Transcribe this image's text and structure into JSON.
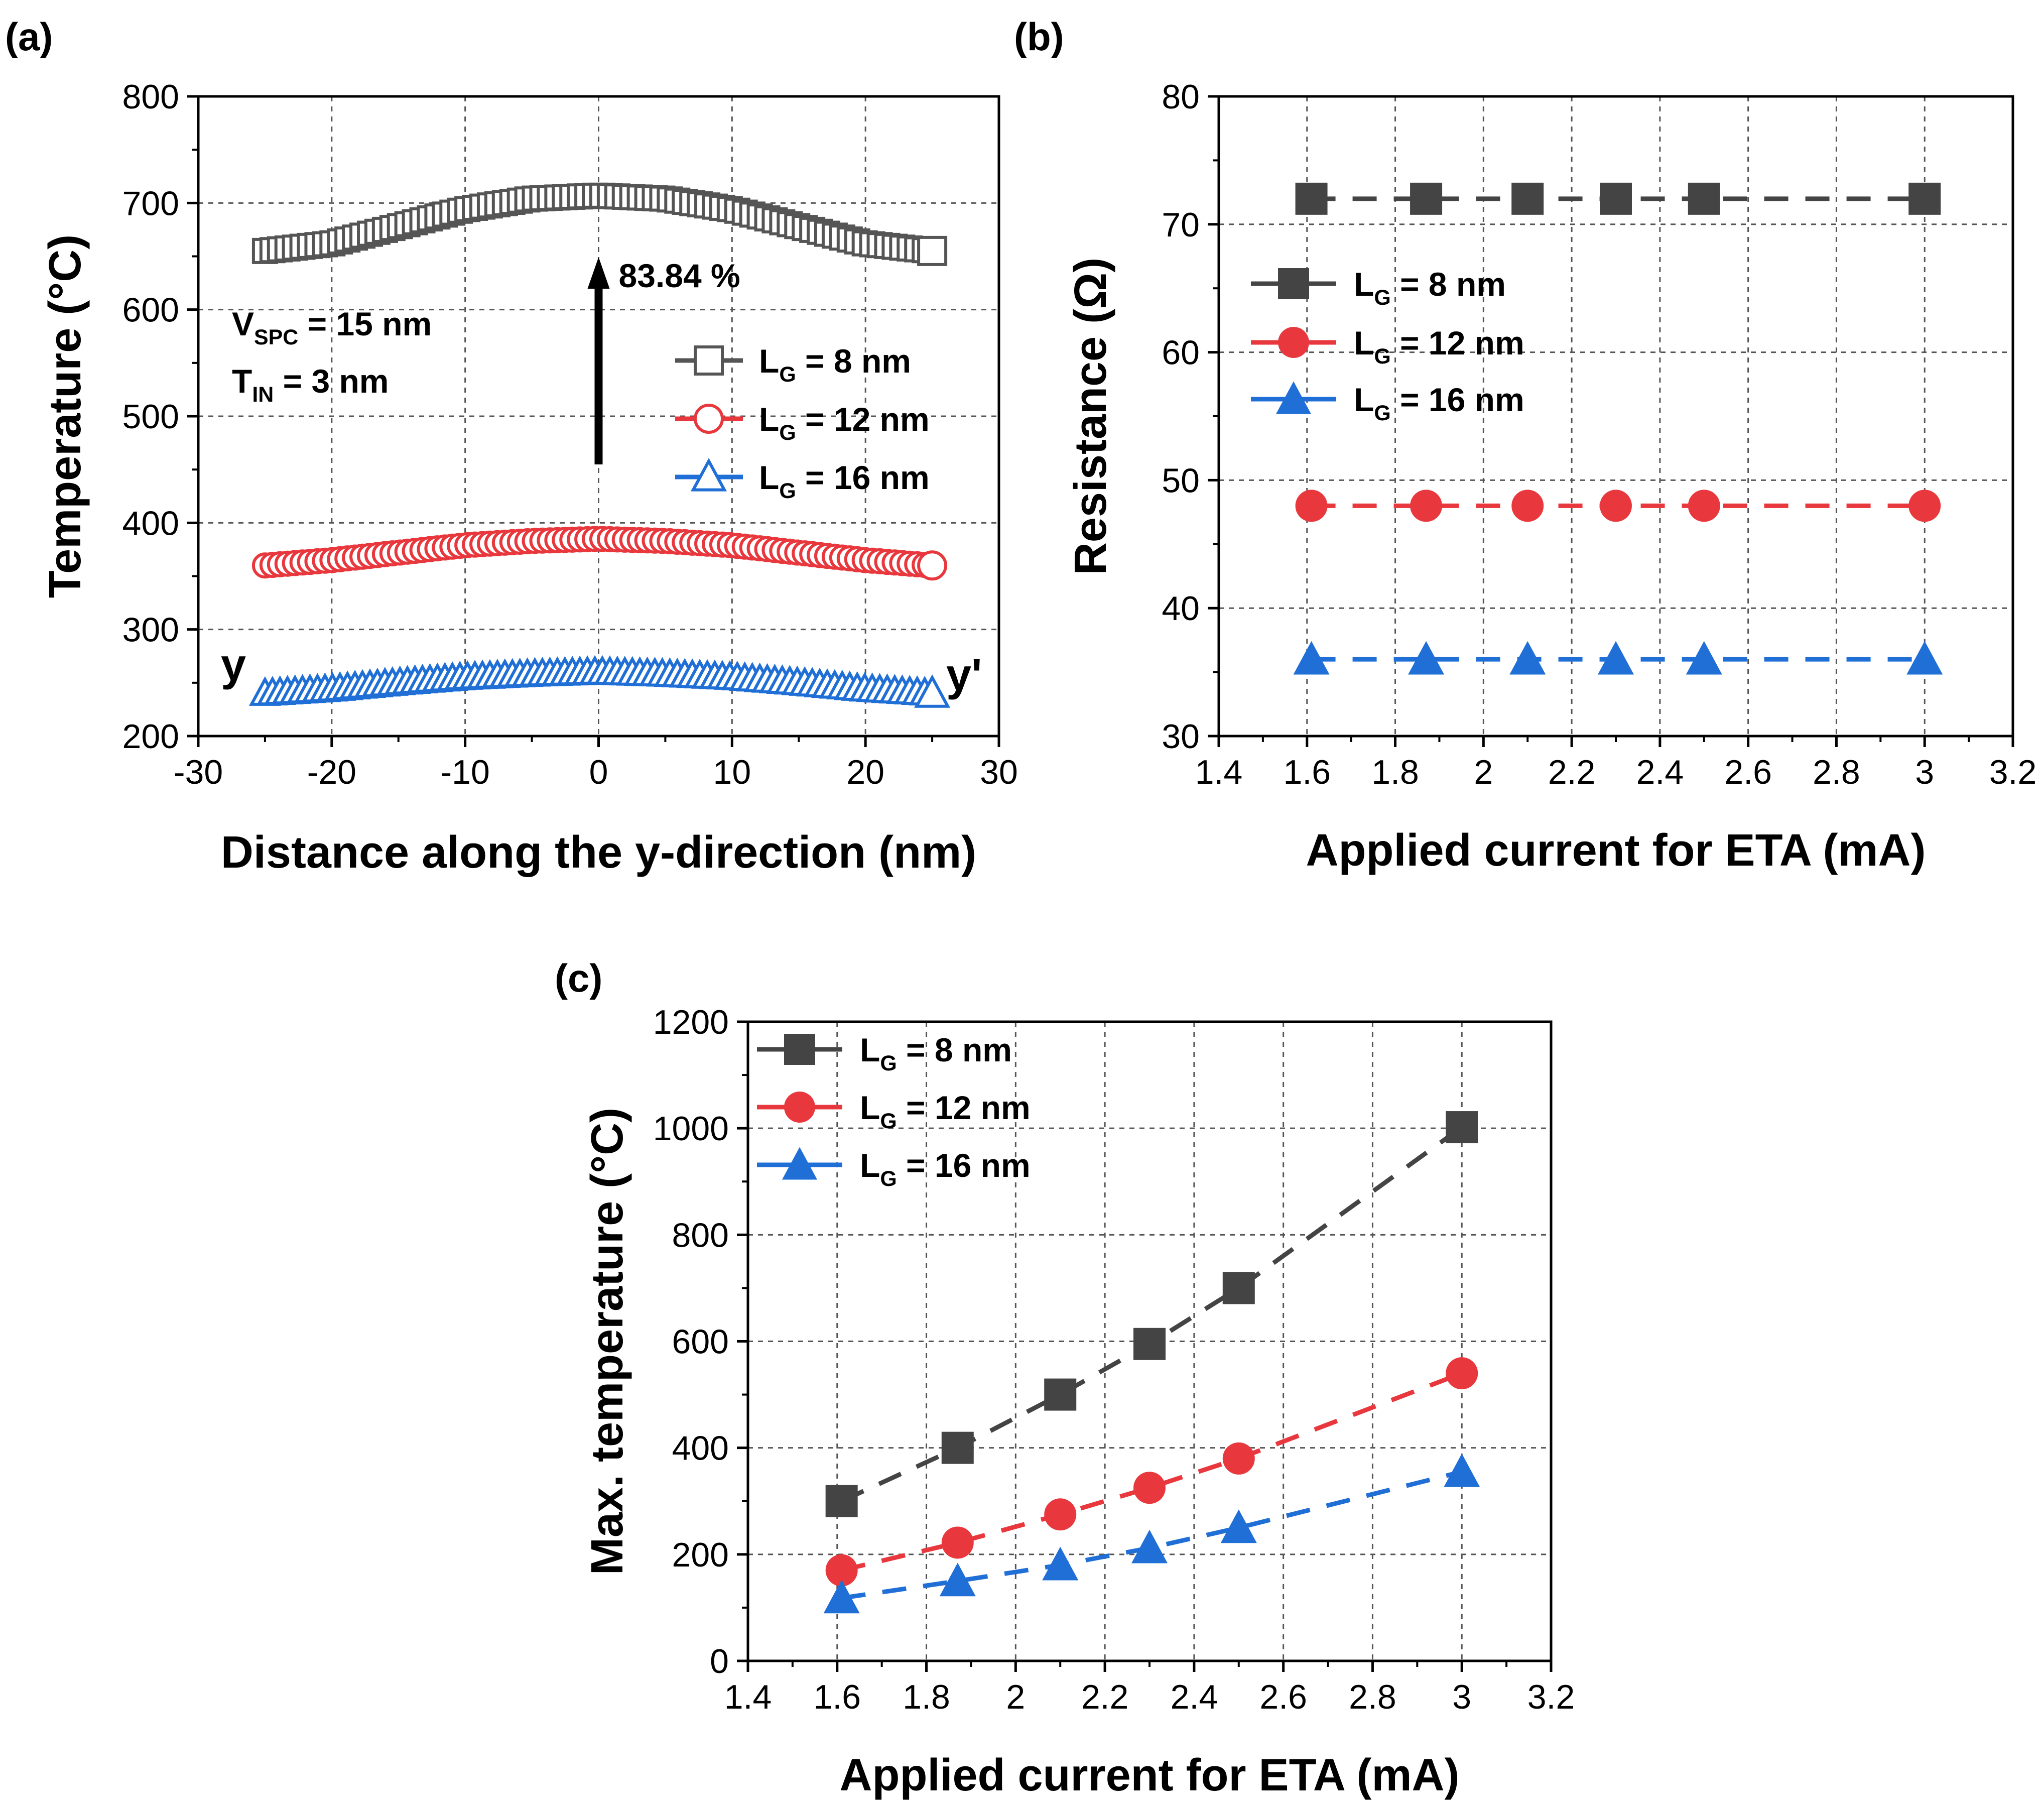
{
  "chart_data": [
    {
      "panel": "(a)",
      "type": "scatter",
      "xlabel": "Distance along the y-direction (nm)",
      "ylabel": "Temperature (°C)",
      "xlim": [
        -30,
        30
      ],
      "ylim": [
        200,
        800
      ],
      "xticks": [
        -30,
        -20,
        -10,
        0,
        10,
        20,
        30
      ],
      "yticks": [
        200,
        300,
        400,
        500,
        600,
        700,
        800
      ],
      "grid": true,
      "legend_position": "right",
      "series": [
        {
          "name_main": "L",
          "name_sub": "G",
          "name_rest": " = 8 nm",
          "color": "#555555",
          "marker": "open-square",
          "x": [
            -25,
            -20,
            -15,
            -10,
            -5,
            0,
            5,
            10,
            15,
            20,
            25
          ],
          "y": [
            655,
            662,
            678,
            694,
            704,
            707,
            704,
            694,
            678,
            662,
            655
          ]
        },
        {
          "name_main": "L",
          "name_sub": "G",
          "name_rest": " = 12 nm",
          "color": "#e8383d",
          "marker": "open-circle",
          "x": [
            -25,
            -20,
            -15,
            -10,
            -5,
            0,
            5,
            10,
            15,
            20,
            25
          ],
          "y": [
            360,
            365,
            372,
            379,
            383,
            385,
            383,
            379,
            372,
            365,
            360
          ]
        },
        {
          "name_main": "L",
          "name_sub": "G",
          "name_rest": " = 16 nm",
          "color": "#1f6fd6",
          "marker": "open-triangle",
          "x": [
            -25,
            -20,
            -15,
            -10,
            -5,
            0,
            5,
            10,
            15,
            20,
            25
          ],
          "y": [
            240,
            244,
            250,
            255,
            258,
            260,
            258,
            255,
            250,
            244,
            240
          ]
        }
      ],
      "annotations": {
        "vspc": {
          "main": "V",
          "sub": "SPC",
          "rest": " = 15 nm"
        },
        "tin": {
          "main": "T",
          "sub": "IN",
          "rest": " = 3 nm"
        },
        "increase": "83.84 %",
        "y_left": "y",
        "y_right": "y'"
      }
    },
    {
      "panel": "(b)",
      "type": "scatter",
      "xlabel": "Applied current for ETA (mA)",
      "ylabel": "Resistance (Ω)",
      "xlim": [
        1.4,
        3.2
      ],
      "ylim": [
        30,
        80
      ],
      "xticks": [
        "1.4",
        "1.6",
        "1.8",
        "2",
        "2.2",
        "2.4",
        "2.6",
        "2.8",
        "3",
        "3.2"
      ],
      "yticks": [
        30,
        40,
        50,
        60,
        70,
        80
      ],
      "grid": true,
      "legend_position": "upper-left",
      "x": [
        1.61,
        1.87,
        2.1,
        2.3,
        2.5,
        3.0
      ],
      "series": [
        {
          "name_main": "L",
          "name_sub": "G",
          "name_rest": " = 8 nm",
          "color": "#444444",
          "marker": "square",
          "values": [
            72,
            72,
            72,
            72,
            72,
            72
          ]
        },
        {
          "name_main": "L",
          "name_sub": "G",
          "name_rest": " = 12 nm",
          "color": "#e8383d",
          "marker": "circle",
          "values": [
            48,
            48,
            48,
            48,
            48,
            48
          ]
        },
        {
          "name_main": "L",
          "name_sub": "G",
          "name_rest": " = 16 nm",
          "color": "#1f6fd6",
          "marker": "triangle",
          "values": [
            36,
            36,
            36,
            36,
            36,
            36
          ]
        }
      ]
    },
    {
      "panel": "(c)",
      "type": "scatter",
      "xlabel": "Applied current for ETA (mA)",
      "ylabel": "Max. temperature (°C)",
      "xlim": [
        1.4,
        3.2
      ],
      "ylim": [
        0,
        1200
      ],
      "xticks": [
        "1.4",
        "1.6",
        "1.8",
        "2",
        "2.2",
        "2.4",
        "2.6",
        "2.8",
        "3",
        "3.2"
      ],
      "yticks": [
        0,
        200,
        400,
        600,
        800,
        1000,
        1200
      ],
      "grid": true,
      "legend_position": "upper-left",
      "x": [
        1.61,
        1.87,
        2.1,
        2.3,
        2.5,
        3.0
      ],
      "series": [
        {
          "name_main": "L",
          "name_sub": "G",
          "name_rest": " = 8 nm",
          "color": "#444444",
          "marker": "square",
          "values": [
            300,
            400,
            500,
            595,
            700,
            1002
          ]
        },
        {
          "name_main": "L",
          "name_sub": "G",
          "name_rest": " = 12 nm",
          "color": "#e8383d",
          "marker": "circle",
          "values": [
            170,
            222,
            275,
            325,
            380,
            540
          ]
        },
        {
          "name_main": "L",
          "name_sub": "G",
          "name_rest": " = 16 nm",
          "color": "#1f6fd6",
          "marker": "triangle",
          "values": [
            118,
            150,
            180,
            212,
            250,
            355
          ]
        }
      ]
    }
  ]
}
